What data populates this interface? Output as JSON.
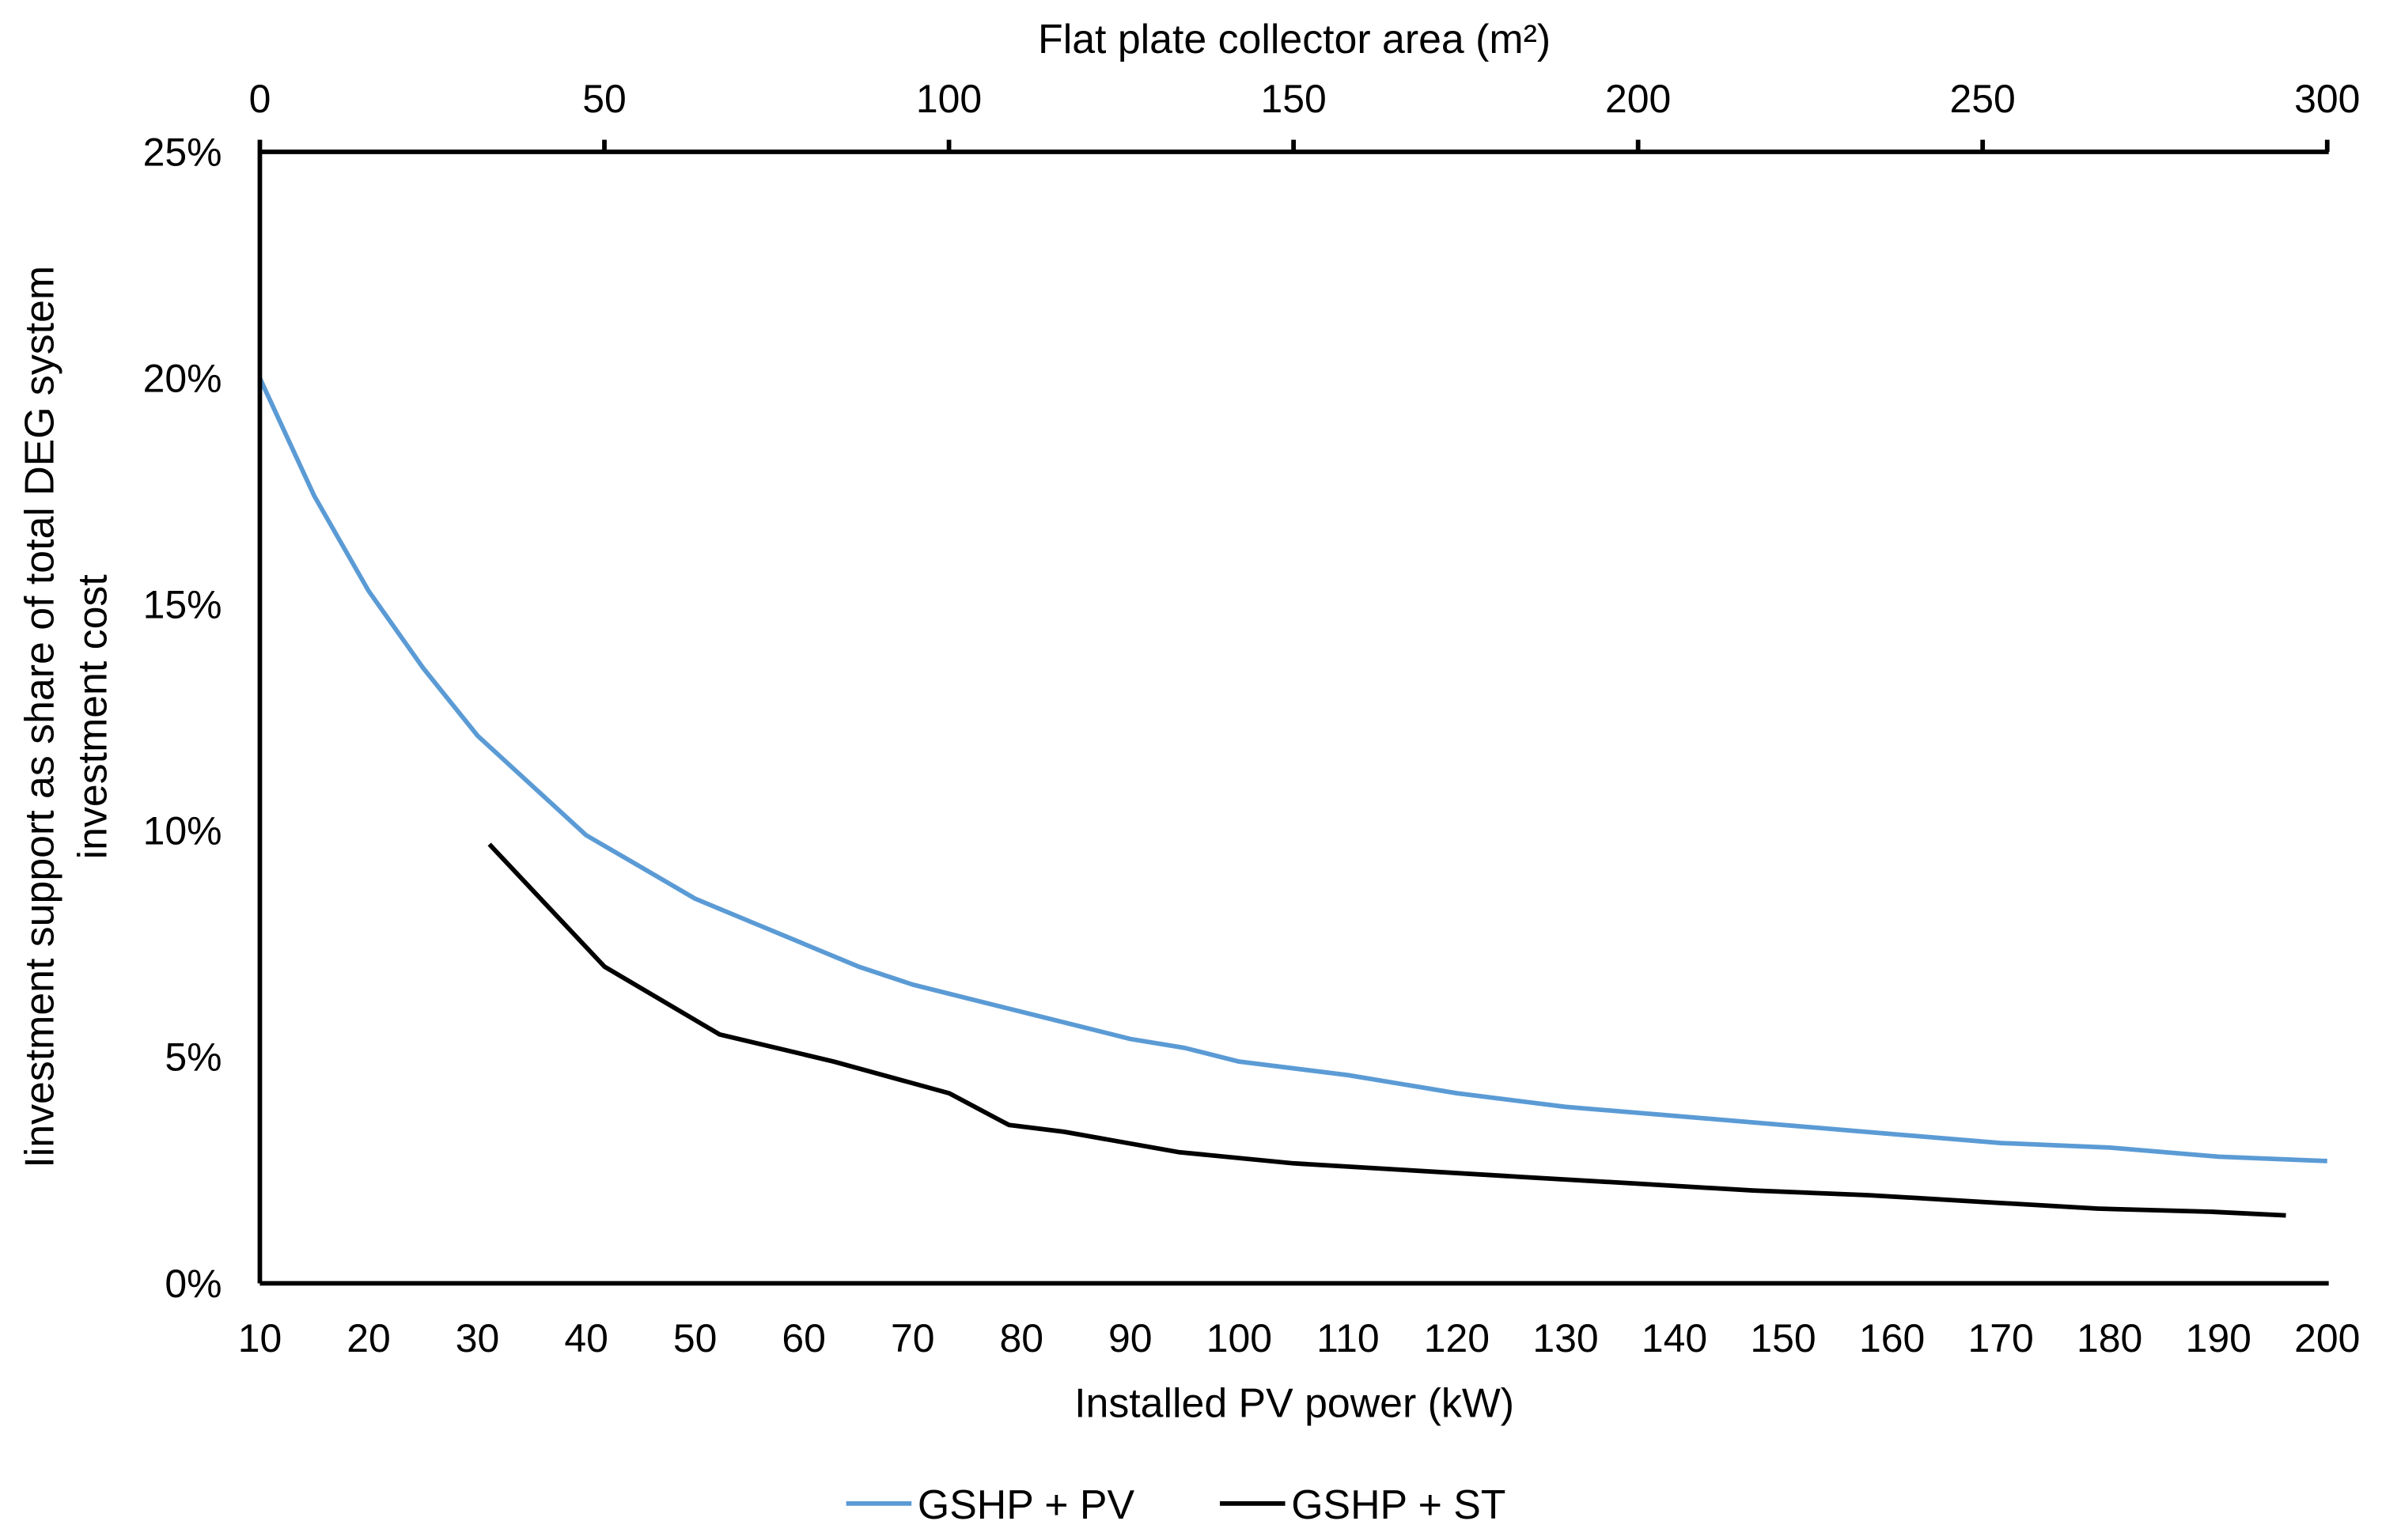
{
  "chart_data": {
    "type": "line",
    "xlabel": "Installed PV power (kW)",
    "x2label": "Flat plate collector area (m²)",
    "ylabel_lines": [
      "Iinvestment support as share of total DEG system",
      "investment cost"
    ],
    "xlim": [
      10,
      200
    ],
    "x2lim": [
      0,
      300
    ],
    "ylim": [
      0,
      25
    ],
    "x_ticks": [
      "10",
      "20",
      "30",
      "40",
      "50",
      "60",
      "70",
      "80",
      "90",
      "100",
      "110",
      "120",
      "130",
      "140",
      "150",
      "160",
      "170",
      "180",
      "190",
      "200"
    ],
    "x2_ticks": [
      "0",
      "50",
      "100",
      "150",
      "200",
      "250",
      "300"
    ],
    "y_ticks": [
      "0%",
      "5%",
      "10%",
      "15%",
      "20%",
      "25%"
    ],
    "grid": false,
    "legend_position": "bottom",
    "series": [
      {
        "name": "GSHP + PV",
        "axis": "bottom",
        "color": "#5B9BD5",
        "x": [
          10,
          15,
          20,
          25,
          30,
          35,
          40,
          45,
          50,
          55,
          60,
          65,
          70,
          75,
          80,
          85,
          90,
          95,
          100,
          110,
          120,
          130,
          140,
          150,
          160,
          170,
          180,
          190,
          200
        ],
        "y": [
          20.0,
          17.4,
          15.3,
          13.6,
          12.1,
          11.0,
          9.9,
          9.2,
          8.5,
          8.0,
          7.5,
          7.0,
          6.6,
          6.3,
          6.0,
          5.7,
          5.4,
          5.2,
          4.9,
          4.6,
          4.2,
          3.9,
          3.7,
          3.5,
          3.3,
          3.1,
          3.0,
          2.8,
          2.7
        ]
      },
      {
        "name": "GSHP + ST",
        "axis": "top",
        "color": "#000000",
        "x": [
          33.3,
          50,
          66.7,
          83.3,
          100,
          108.7,
          116.7,
          133.3,
          150,
          166.7,
          183.3,
          200,
          216.7,
          233.3,
          250,
          266.7,
          283.3,
          294
        ],
        "y": [
          9.7,
          7.0,
          5.5,
          4.9,
          4.2,
          3.5,
          3.35,
          2.9,
          2.65,
          2.5,
          2.35,
          2.2,
          2.05,
          1.95,
          1.8,
          1.65,
          1.58,
          1.5
        ]
      }
    ]
  }
}
